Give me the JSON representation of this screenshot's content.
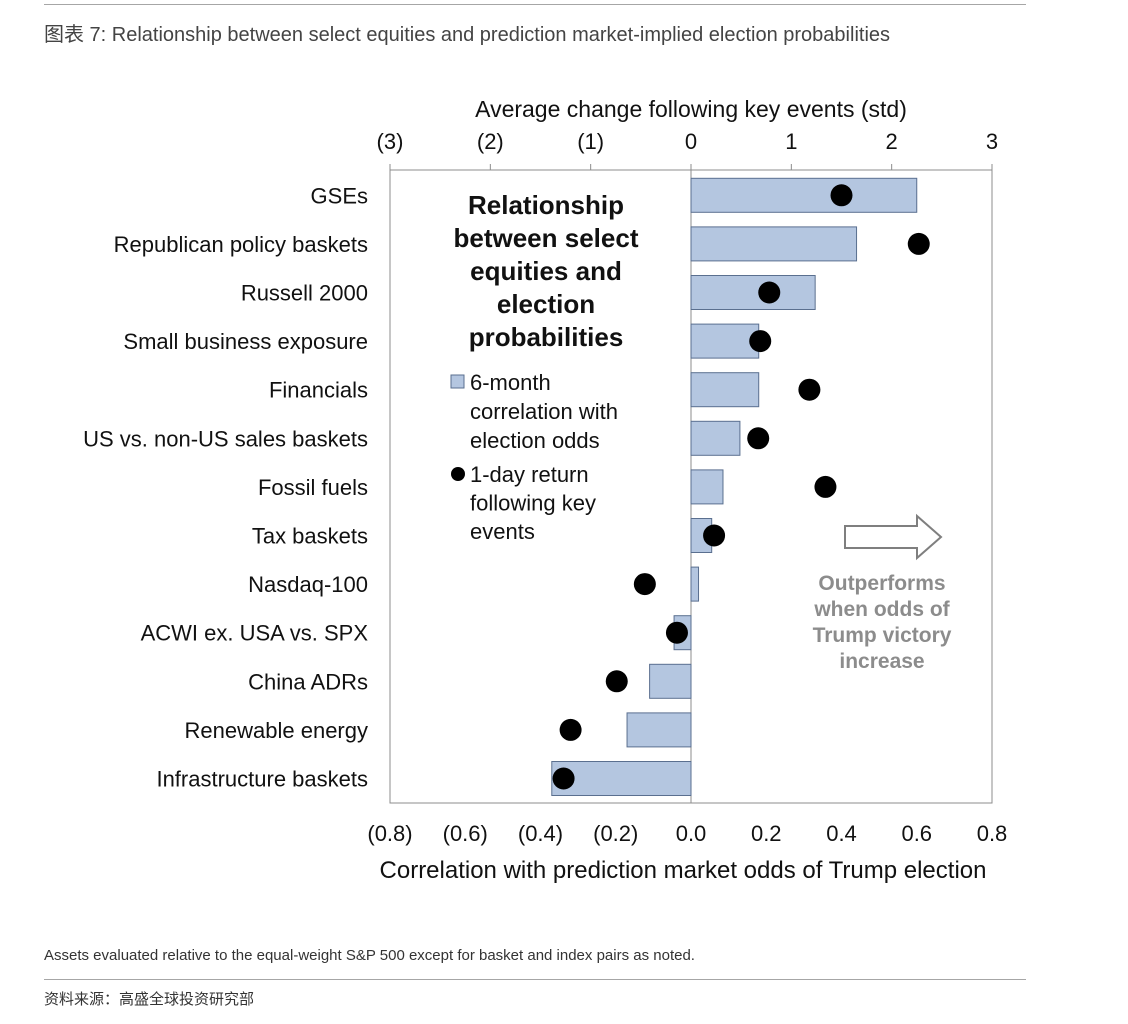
{
  "figure": {
    "title": "图表 7: Relationship between select equities and prediction market-implied election probabilities",
    "footnote": "Assets evaluated relative to the equal-weight S&P 500 except for basket and index pairs as noted.",
    "source": "资料来源：高盛全球投资研究部"
  },
  "colors": {
    "bar_fill": "#b4c6e0",
    "bar_stroke": "#5a6f8f",
    "dot": "#000000",
    "annotation_text": "#8c8c8c"
  },
  "inset": {
    "title_lines": [
      "Relationship",
      "between select",
      "equities and",
      "election",
      "probabilities"
    ],
    "legend_bar_lines": [
      "6-month",
      "correlation with",
      "election odds"
    ],
    "legend_dot_lines": [
      "1-day return",
      "following key",
      "events"
    ]
  },
  "annotation": {
    "lines": [
      "Outperforms",
      "when odds of",
      "Trump victory",
      "increase"
    ],
    "arrow_icon": "right-arrow-icon"
  },
  "chart_data": {
    "type": "bar",
    "orientation": "horizontal",
    "categories": [
      "GSEs",
      "Republican policy baskets",
      "Russell 2000",
      "Small business exposure",
      "Financials",
      "US vs. non-US sales baskets",
      "Fossil fuels",
      "Tax baskets",
      "Nasdaq-100",
      "ACWI ex. USA vs. SPX",
      "China ADRs",
      "Renewable energy",
      "Infrastructure baskets"
    ],
    "series": [
      {
        "name": "6-month correlation with election odds",
        "axis": "bottom",
        "marker": "bar",
        "values": [
          0.6,
          0.44,
          0.33,
          0.18,
          0.18,
          0.13,
          0.085,
          0.055,
          0.02,
          -0.045,
          -0.11,
          -0.17,
          -0.37
        ]
      },
      {
        "name": "1-day return following key events",
        "axis": "top",
        "marker": "dot",
        "values": [
          1.5,
          2.27,
          0.78,
          0.69,
          1.18,
          0.67,
          1.34,
          0.23,
          -0.46,
          -0.14,
          -0.74,
          -1.2,
          -1.27
        ]
      }
    ],
    "xlabel": "Correlation with prediction market odds of Trump election",
    "x2label": "Average change following key events (std)",
    "xlim": [
      -0.8,
      0.8
    ],
    "x2lim": [
      -3,
      3
    ],
    "xticks": [
      "(0.8)",
      "(0.6)",
      "(0.4)",
      "(0.2)",
      "0.0",
      "0.2",
      "0.4",
      "0.6",
      "0.8"
    ],
    "x2ticks": [
      "(3)",
      "(2)",
      "(1)",
      "0",
      "1",
      "2",
      "3"
    ],
    "grid": false,
    "legend_position": "inside top-left"
  }
}
